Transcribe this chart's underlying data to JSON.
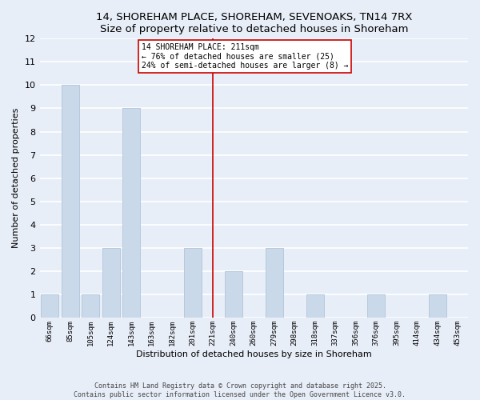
{
  "title_line1": "14, SHOREHAM PLACE, SHOREHAM, SEVENOAKS, TN14 7RX",
  "title_line2": "Size of property relative to detached houses in Shoreham",
  "xlabel": "Distribution of detached houses by size in Shoreham",
  "ylabel": "Number of detached properties",
  "categories": [
    "66sqm",
    "85sqm",
    "105sqm",
    "124sqm",
    "143sqm",
    "163sqm",
    "182sqm",
    "201sqm",
    "221sqm",
    "240sqm",
    "260sqm",
    "279sqm",
    "298sqm",
    "318sqm",
    "337sqm",
    "356sqm",
    "376sqm",
    "395sqm",
    "414sqm",
    "434sqm",
    "453sqm"
  ],
  "values": [
    1,
    10,
    1,
    3,
    9,
    0,
    0,
    3,
    0,
    2,
    0,
    3,
    0,
    1,
    0,
    0,
    1,
    0,
    0,
    1,
    0
  ],
  "bar_color": "#c9d9ea",
  "bar_edge_color": "#b0c4d8",
  "background_color": "#e8eef8",
  "grid_color": "#ffffff",
  "ylim": [
    0,
    12
  ],
  "yticks": [
    0,
    1,
    2,
    3,
    4,
    5,
    6,
    7,
    8,
    9,
    10,
    11,
    12
  ],
  "vline_x_index": 8,
  "vline_color": "#cc0000",
  "annotation_text": "14 SHOREHAM PLACE: 211sqm\n← 76% of detached houses are smaller (25)\n24% of semi-detached houses are larger (8) →",
  "annotation_box_color": "#ffffff",
  "annotation_box_edge": "#cc0000",
  "footer_line1": "Contains HM Land Registry data © Crown copyright and database right 2025.",
  "footer_line2": "Contains public sector information licensed under the Open Government Licence v3.0."
}
